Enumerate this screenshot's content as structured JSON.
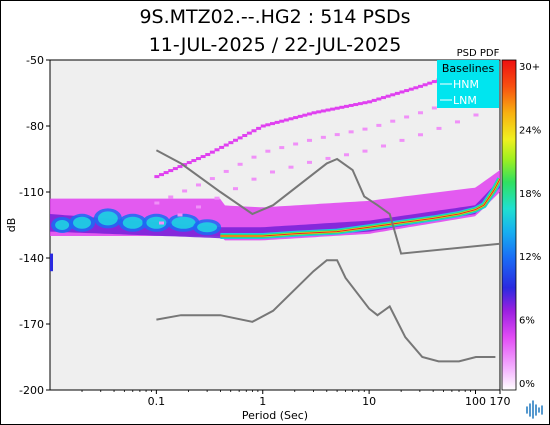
{
  "header": {
    "title_line1": "9S.MTZ02.--.HG2 : 514 PSDs",
    "title_line2": "11-JUL-2025 / 22-JUL-2025"
  },
  "colorbar": {
    "title": "PSD PDF",
    "ticks": [
      "30+",
      "24%",
      "18%",
      "12%",
      "6%",
      "0%"
    ]
  },
  "legend": {
    "title": "Baselines",
    "items": [
      "HNM",
      "LNM"
    ],
    "background": "#00e5ef",
    "text_color": "#ffffff"
  },
  "chart_data": {
    "type": "heatmap",
    "xlabel": "Period (Sec)",
    "ylabel": "dB",
    "x_scale": "log",
    "xlim": [
      0.01,
      170
    ],
    "ylim": [
      -200,
      -50
    ],
    "x_ticks": [
      0.1,
      1,
      10,
      100,
      170
    ],
    "x_tick_labels": [
      "0.1",
      "1",
      "10",
      "100",
      "170"
    ],
    "y_ticks": [
      -50,
      -80,
      -110,
      -140,
      -170,
      -200
    ],
    "y_tick_labels": [
      "-50",
      "-80",
      "-110",
      "-140",
      "-170",
      "-200"
    ],
    "baselines": [
      {
        "name": "HNM",
        "color": "#777777",
        "points": [
          [
            0.1,
            -91
          ],
          [
            0.17,
            -97
          ],
          [
            0.4,
            -110
          ],
          [
            0.8,
            -120
          ],
          [
            1.25,
            -116
          ],
          [
            4,
            -97
          ],
          [
            5,
            -95
          ],
          [
            7,
            -100
          ],
          [
            9,
            -112
          ],
          [
            12,
            -116
          ],
          [
            15.6,
            -120
          ],
          [
            20,
            -138
          ],
          [
            354,
            -132
          ]
        ]
      },
      {
        "name": "LNM",
        "color": "#777777",
        "points": [
          [
            0.1,
            -168
          ],
          [
            0.17,
            -166
          ],
          [
            0.4,
            -166
          ],
          [
            0.8,
            -169
          ],
          [
            1.25,
            -164
          ],
          [
            3,
            -146
          ],
          [
            4,
            -141
          ],
          [
            5,
            -141
          ],
          [
            6,
            -149
          ],
          [
            10,
            -163
          ],
          [
            12,
            -166
          ],
          [
            15.6,
            -162
          ],
          [
            21.9,
            -176
          ],
          [
            31.6,
            -185
          ],
          [
            45,
            -187
          ],
          [
            70,
            -187
          ],
          [
            101,
            -185
          ],
          [
            154,
            -185
          ]
        ]
      }
    ],
    "pdf_mode_curve": [
      [
        0.4,
        -130
      ],
      [
        1,
        -130
      ],
      [
        2,
        -129
      ],
      [
        5,
        -128
      ],
      [
        10,
        -126
      ],
      [
        20,
        -124
      ],
      [
        40,
        -122
      ],
      [
        70,
        -120
      ],
      [
        100,
        -118
      ],
      [
        120,
        -116
      ],
      [
        150,
        -109
      ],
      [
        170,
        -104
      ]
    ],
    "pdf_outliers_upper": [
      [
        0.1,
        -103
      ],
      [
        0.3,
        -93
      ],
      [
        1,
        -80
      ],
      [
        3,
        -74
      ],
      [
        10,
        -69
      ],
      [
        30,
        -62
      ],
      [
        60,
        -57
      ],
      [
        100,
        -53
      ]
    ]
  }
}
